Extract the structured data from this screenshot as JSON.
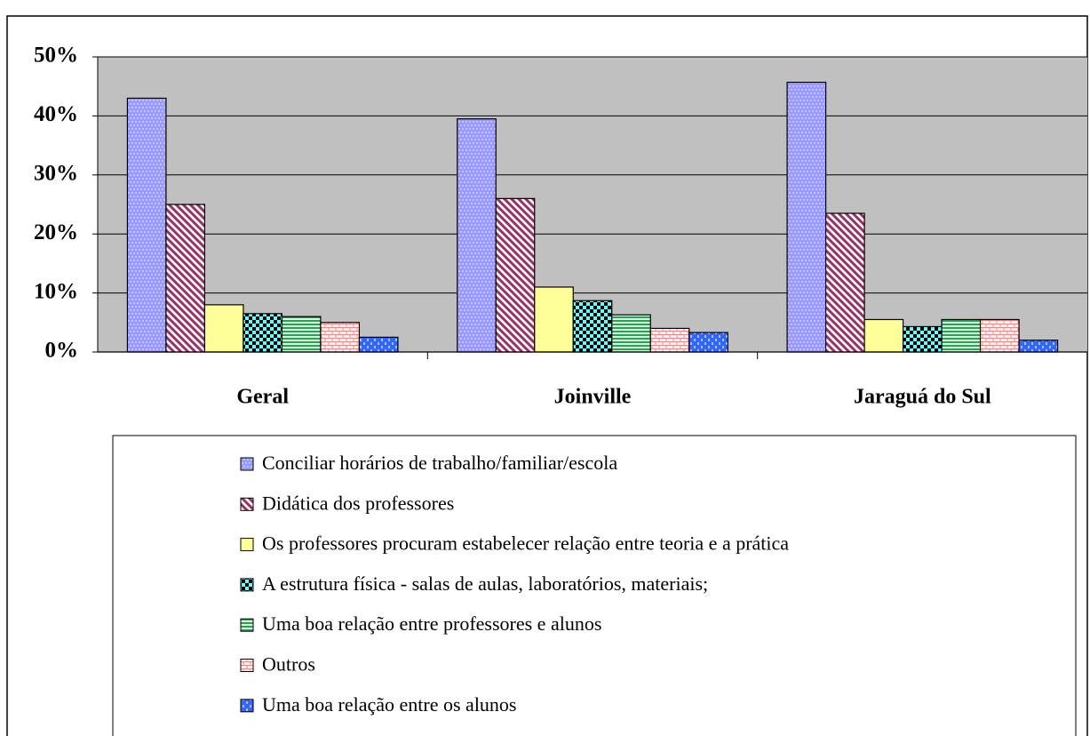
{
  "chart_data": {
    "type": "bar",
    "categories": [
      "Geral",
      "Joinville",
      "Jaraguá do Sul"
    ],
    "series": [
      {
        "name": "Conciliar horários de trabalho/familiar/escola",
        "color": "#9999ff",
        "values": [
          43,
          39.5,
          45.7
        ]
      },
      {
        "name": "Didática dos professores",
        "color": "#993366",
        "values": [
          25,
          26,
          23.5
        ]
      },
      {
        "name": "Os professores procuram estabelecer relação entre teoria e a prática",
        "color": "#ffff99",
        "values": [
          8,
          11,
          5.5
        ]
      },
      {
        "name": "A estrutura física - salas de aulas, laboratórios, materiais;",
        "color": "#000000",
        "values": [
          6.5,
          8.7,
          4.3
        ]
      },
      {
        "name": "Uma boa relação entre professores e alunos",
        "color": "#339966",
        "values": [
          6,
          6.3,
          5.5
        ]
      },
      {
        "name": "Outros",
        "color": "#ff8080",
        "values": [
          5,
          4,
          5.5
        ]
      },
      {
        "name": "Uma boa relação entre os alunos",
        "color": "#3366ff",
        "values": [
          2.5,
          3.3,
          2
        ]
      }
    ],
    "ylim": [
      0,
      50
    ],
    "yticks": [
      {
        "value": 0,
        "label": "0%"
      },
      {
        "value": 10,
        "label": "10%"
      },
      {
        "value": 20,
        "label": "20%"
      },
      {
        "value": 30,
        "label": "30%"
      },
      {
        "value": 40,
        "label": "40%"
      },
      {
        "value": 50,
        "label": "50%"
      }
    ],
    "grid": true,
    "background": "#c0c0c0"
  }
}
